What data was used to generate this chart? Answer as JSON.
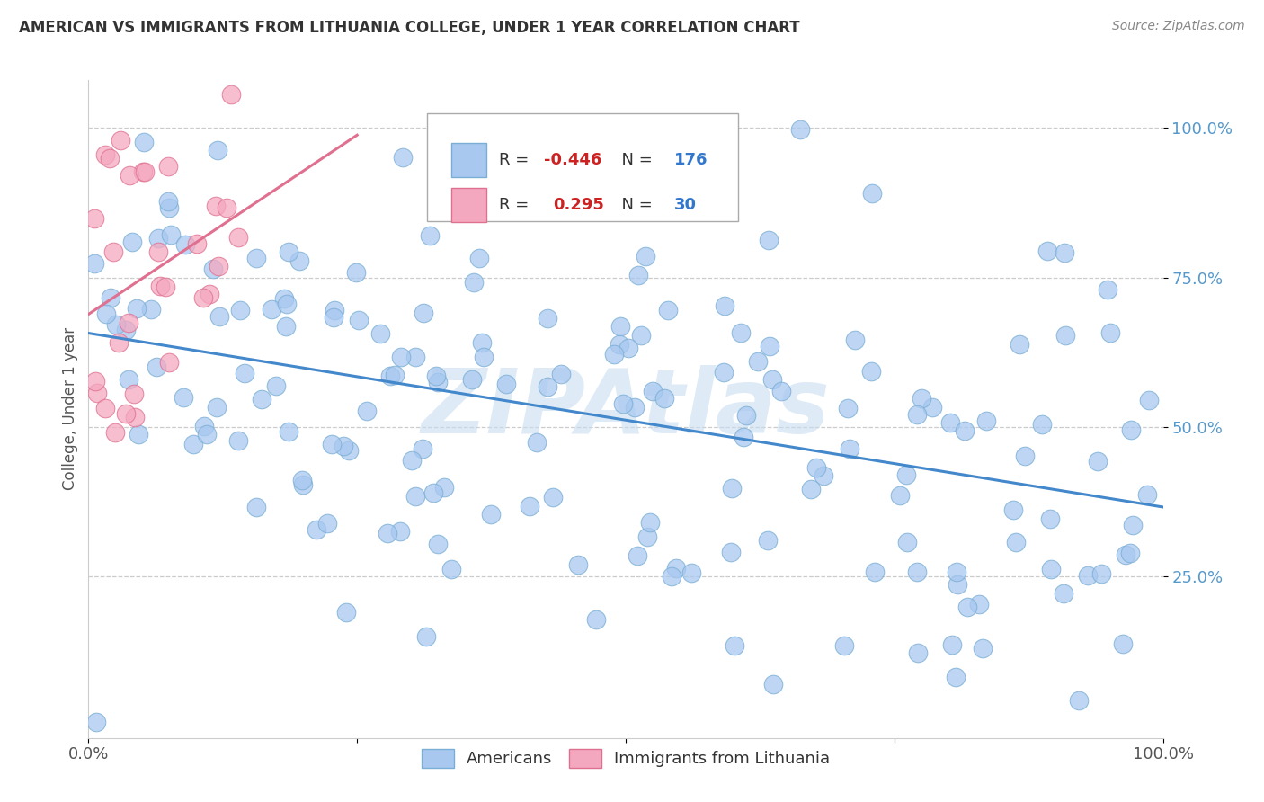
{
  "title": "AMERICAN VS IMMIGRANTS FROM LITHUANIA COLLEGE, UNDER 1 YEAR CORRELATION CHART",
  "source": "Source: ZipAtlas.com",
  "ylabel": "College, Under 1 year",
  "xlim": [
    0,
    1
  ],
  "ylim": [
    -0.02,
    1.08
  ],
  "xtick_vals": [
    0,
    0.25,
    0.5,
    0.75,
    1.0
  ],
  "xtick_labels_sparse": [
    "0.0%",
    "",
    "",
    "",
    "100.0%"
  ],
  "ytick_vals": [
    0.25,
    0.5,
    0.75,
    1.0
  ],
  "ytick_labels": [
    "25.0%",
    "50.0%",
    "75.0%",
    "100.0%"
  ],
  "american_color": "#a8c8f0",
  "american_edge_color": "#7aaed4",
  "lithuania_color": "#f4a8c0",
  "lithuania_edge_color": "#e07090",
  "american_R": -0.446,
  "american_N": 176,
  "lithuania_R": 0.295,
  "lithuania_N": 30,
  "trend_blue_color": "#4488cc",
  "trend_pink_color": "#e07090",
  "watermark": "ZIPAtlas",
  "watermark_color": "#c8ddf0",
  "background_color": "#ffffff",
  "grid_color": "#cccccc",
  "title_color": "#333333",
  "source_color": "#888888",
  "ylabel_color": "#555555",
  "ytick_color": "#5599cc",
  "xtick_color": "#555555",
  "legend_box_edge": "#aaaaaa",
  "legend_R_color": "#cc2222",
  "legend_N_color": "#3377cc"
}
